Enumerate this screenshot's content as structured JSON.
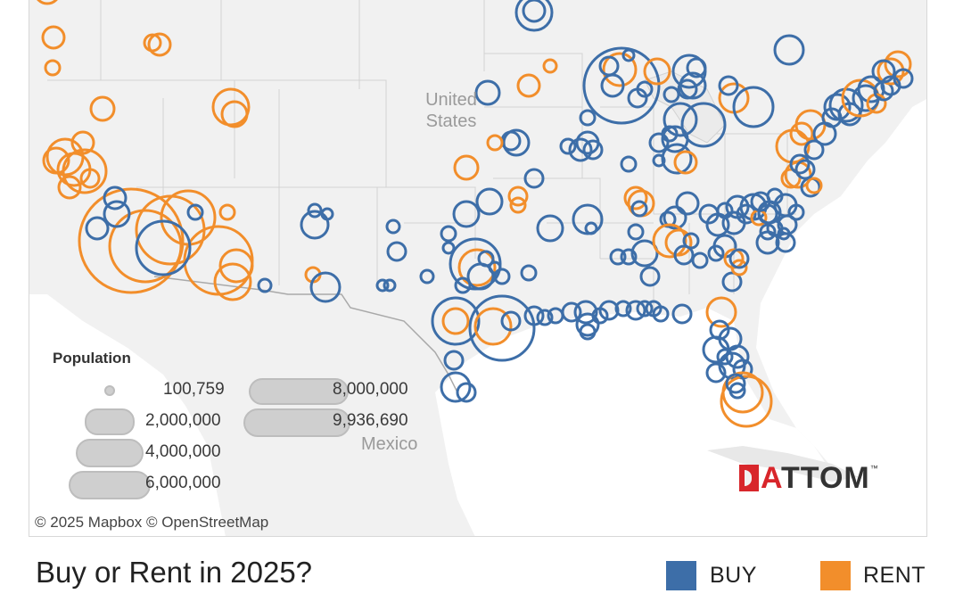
{
  "map": {
    "labels": {
      "country_us": "United States",
      "country_mexico": "Mexico"
    },
    "attribution": "© 2025 Mapbox  © OpenStreetMap",
    "colors": {
      "buy": "#3d6ea8",
      "rent": "#f28e2b",
      "land": "#f1f1f1",
      "border": "#c9c9c9"
    }
  },
  "size_legend": {
    "title": "Population",
    "items": [
      "100,759",
      "2,000,000",
      "4,000,000",
      "6,000,000",
      "8,000,000",
      "9,936,690"
    ]
  },
  "logo": {
    "text_red": "A",
    "text_dark": "TTOM",
    "tm": "™"
  },
  "footer": {
    "title": "Buy or Rent in 2025?",
    "legend": [
      {
        "label": "BUY",
        "color": "#3d6ea8"
      },
      {
        "label": "RENT",
        "color": "#f28e2b"
      }
    ]
  }
}
